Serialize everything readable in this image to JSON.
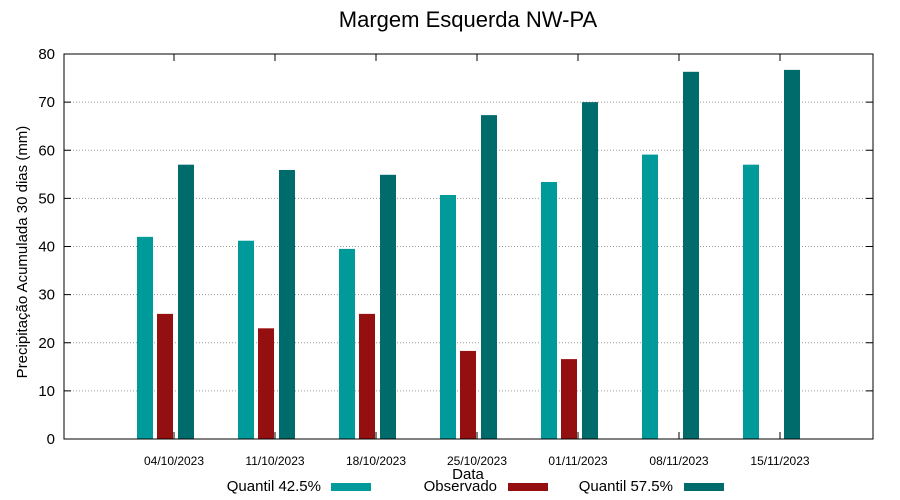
{
  "chart_data": {
    "type": "bar",
    "title": "Margem Esquerda NW-PA",
    "xlabel": "Data",
    "ylabel": "Precipitação Acumulada 30 dias (mm)",
    "ylim": [
      0,
      80
    ],
    "yticks": [
      0,
      10,
      20,
      30,
      40,
      50,
      60,
      70,
      80
    ],
    "grid": true,
    "legend_position": "bottom",
    "categories": [
      "04/10/2023",
      "11/10/2023",
      "18/10/2023",
      "25/10/2023",
      "01/11/2023",
      "08/11/2023",
      "15/11/2023"
    ],
    "series": [
      {
        "name": "Quantil 42.5%",
        "color": "#009a9a",
        "values": [
          42,
          41.2,
          39.5,
          50.7,
          53.4,
          59.1,
          57
        ]
      },
      {
        "name": "Observado",
        "color": "#941010",
        "values": [
          26,
          23,
          26,
          18.3,
          16.6,
          null,
          null
        ]
      },
      {
        "name": "Quantil 57.5%",
        "color": "#006b6b",
        "values": [
          57,
          55.9,
          54.9,
          67.3,
          70,
          76.3,
          76.7
        ]
      }
    ]
  }
}
